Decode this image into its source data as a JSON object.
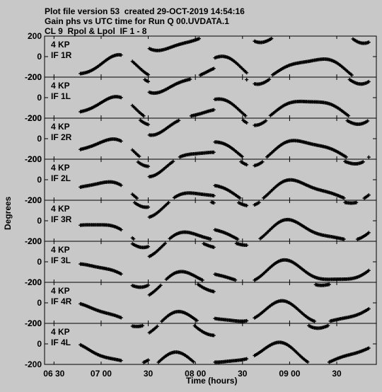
{
  "header": {
    "line1": "Plot file version 53  created 29-OCT-2019 14:54:16",
    "line2": "Gain phs vs UTC time for Run Q 00.UVDATA.1",
    "line3": "CL 9  Rpol & Lpol  IF 1 - 8"
  },
  "chart_data": {
    "type": "scatter",
    "title": "Gain phs vs UTC time for Run Q 00.UVDATA.1",
    "xlabel": "Time (hours)",
    "ylabel": "Degrees",
    "x_ticks": [
      "06 30",
      "07 00",
      "30",
      "08 00",
      "30",
      "09 00",
      "30"
    ],
    "x_tick_hours": [
      6.5,
      7.0,
      7.5,
      8.0,
      8.5,
      9.0,
      9.5
    ],
    "xlim": [
      6.4,
      9.92
    ],
    "ylim": [
      -200,
      200
    ],
    "y_ticks": [
      "200",
      "0",
      "-200"
    ],
    "y_tick_values": [
      200,
      0,
      -200
    ],
    "marker": "+",
    "panels": [
      {
        "label1": "4 KP",
        "label2": "IF 1R",
        "shift": 0.0
      },
      {
        "label1": "4 KP",
        "label2": "IF 1L",
        "shift": 0.05
      },
      {
        "label1": "4 KP",
        "label2": "IF 2R",
        "shift": 0.1
      },
      {
        "label1": "4 KP",
        "label2": "IF 2L",
        "shift": 0.15
      },
      {
        "label1": "4 KP",
        "label2": "IF 3R",
        "shift": 0.2
      },
      {
        "label1": "4 KP",
        "label2": "IF 3L",
        "shift": 0.25
      },
      {
        "label1": "4 KP",
        "label2": "IF 4R",
        "shift": 0.3
      },
      {
        "label1": "4 KP",
        "label2": "IF 4L",
        "shift": 0.35
      }
    ]
  }
}
